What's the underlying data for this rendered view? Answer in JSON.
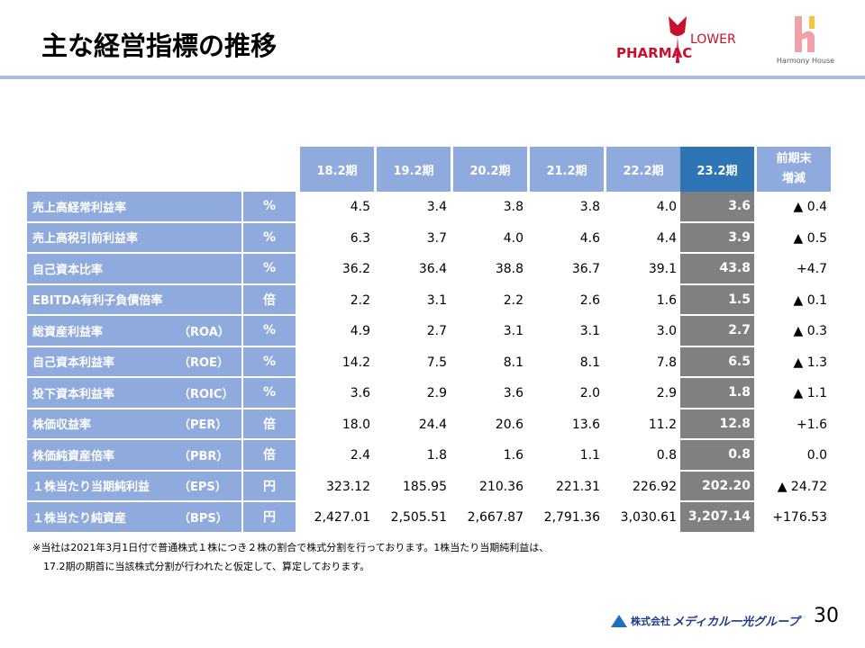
{
  "header": {
    "title": "主な経営指標の推移"
  },
  "logos": {
    "pharmac": "PHARMAC",
    "lower": "LOWER",
    "harmony": "Harmony House",
    "company_prefix": "株式会社",
    "company_name": "メディカル一光グループ"
  },
  "table": {
    "columns": [
      "18.2期",
      "19.2期",
      "20.2期",
      "21.2期",
      "22.2期",
      "23.2期"
    ],
    "change_header": [
      "前期末",
      "増減"
    ],
    "rows": [
      {
        "label": "売上高経常利益率",
        "abbr": null,
        "unit": "%",
        "values": [
          "4.5",
          "3.4",
          "3.8",
          "3.8",
          "4.0",
          "3.6"
        ],
        "change": "▲ 0.4"
      },
      {
        "label": "売上高税引前利益率",
        "abbr": null,
        "unit": "%",
        "values": [
          "6.3",
          "3.7",
          "4.0",
          "4.6",
          "4.4",
          "3.9"
        ],
        "change": "▲ 0.5"
      },
      {
        "label": "自己資本比率",
        "abbr": null,
        "unit": "%",
        "values": [
          "36.2",
          "36.4",
          "38.8",
          "36.7",
          "39.1",
          "43.8"
        ],
        "change": "+4.7"
      },
      {
        "label": "EBITDA有利子負債倍率",
        "abbr": null,
        "unit": "倍",
        "values": [
          "2.2",
          "3.1",
          "2.2",
          "2.6",
          "1.6",
          "1.5"
        ],
        "change": "▲ 0.1"
      },
      {
        "label": "総資産利益率",
        "abbr": "（ROA）",
        "unit": "%",
        "values": [
          "4.9",
          "2.7",
          "3.1",
          "3.1",
          "3.0",
          "2.7"
        ],
        "change": "▲ 0.3"
      },
      {
        "label": "自己資本利益率",
        "abbr": "（ROE）",
        "unit": "%",
        "values": [
          "14.2",
          "7.5",
          "8.1",
          "8.1",
          "7.8",
          "6.5"
        ],
        "change": "▲ 1.3"
      },
      {
        "label": "投下資本利益率",
        "abbr": "（ROIC）",
        "unit": "%",
        "values": [
          "3.6",
          "2.9",
          "3.6",
          "2.0",
          "2.9",
          "1.8"
        ],
        "change": "▲ 1.1"
      },
      {
        "label": "株価収益率",
        "abbr": "（PER）",
        "unit": "倍",
        "values": [
          "18.0",
          "24.4",
          "20.6",
          "13.6",
          "11.2",
          "12.8"
        ],
        "change": "+1.6"
      },
      {
        "label": "株価純資産倍率",
        "abbr": "（PBR）",
        "unit": "倍",
        "values": [
          "2.4",
          "1.8",
          "1.6",
          "1.1",
          "0.8",
          "0.8"
        ],
        "change": "0.0"
      },
      {
        "label": "１株当たり当期純利益",
        "abbr": "（EPS）",
        "unit": "円",
        "values": [
          "323.12",
          "185.95",
          "210.36",
          "221.31",
          "226.92",
          "202.20"
        ],
        "change": "▲ 24.72"
      },
      {
        "label": "１株当たり純資産",
        "abbr": "（BPS）",
        "unit": "円",
        "values": [
          "2,427.01",
          "2,505.51",
          "2,667.87",
          "2,791.36",
          "3,030.61",
          "3,207.14"
        ],
        "change": "+176.53"
      }
    ]
  },
  "footnote": [
    "※当社は2021年3月1日付で普通株式１株につき２株の割合で株式分割を行っております。1株当たり当期純利益は、",
    "17.2期の期首に当該株式分割が行われたと仮定して、算定しております。"
  ],
  "page_number": "30"
}
